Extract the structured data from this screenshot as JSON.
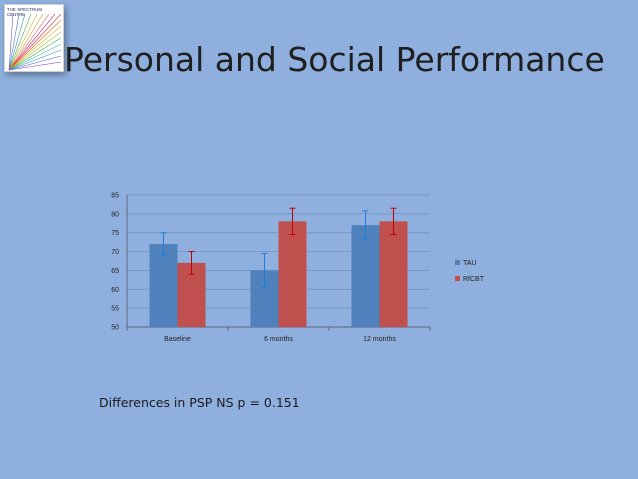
{
  "logo": {
    "text": "THE SPECTRUM CENTRE"
  },
  "slide": {
    "title": "Personal and Social Performance",
    "note": "Differences in PSP NS p = 0.151"
  },
  "colors": {
    "background": "#8FB0DF",
    "tau": "#4F81BD",
    "rfcbt": "#C0504D",
    "tau_error": "#1F7FD6",
    "rfcbt_error": "#C00000"
  },
  "chart_data": {
    "type": "bar",
    "categories": [
      "Baseline",
      "6 months",
      "12 months"
    ],
    "series": [
      {
        "name": "TAU",
        "values": [
          72,
          65,
          77
        ],
        "error": [
          3,
          4.5,
          3.8
        ]
      },
      {
        "name": "RfCBT",
        "values": [
          67,
          78,
          78
        ],
        "error": [
          3,
          3.5,
          3.5
        ]
      }
    ],
    "yticks": [
      "50",
      "55",
      "60",
      "65",
      "70",
      "75",
      "80",
      "85"
    ],
    "ylim": [
      50,
      85
    ],
    "grid": true,
    "legend": "right",
    "error_bars": true
  }
}
